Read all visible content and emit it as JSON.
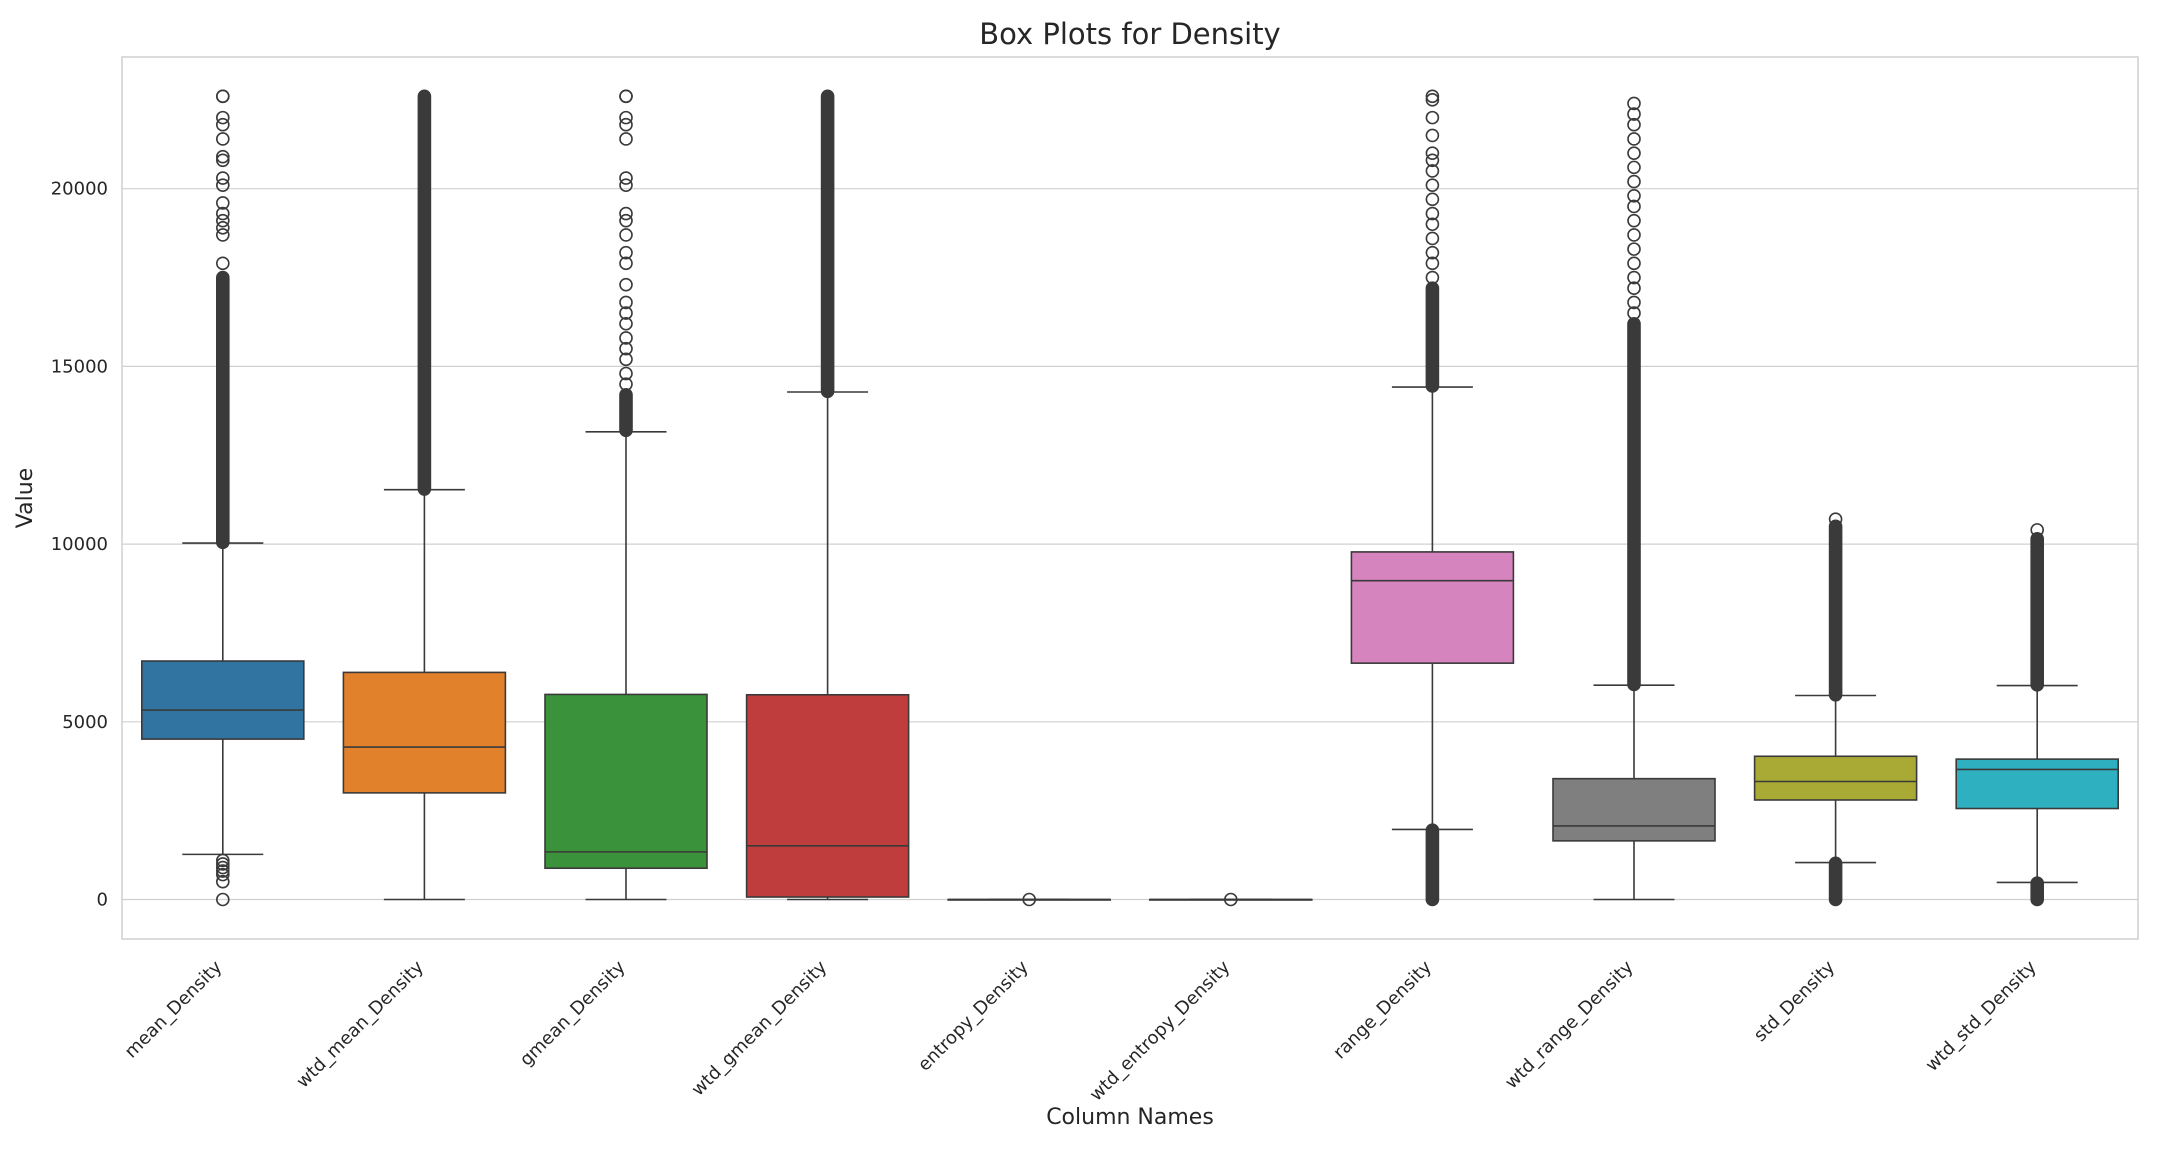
{
  "chart_data": {
    "type": "box",
    "title": "Box Plots for Density",
    "xlabel": "Column Names",
    "ylabel": "Value",
    "ylim": [
      -1100,
      23500
    ],
    "yticks": [
      0,
      5000,
      10000,
      15000,
      20000
    ],
    "grid": true,
    "series": [
      {
        "name": "mean_Density",
        "color": "#3274a1",
        "q1": 4513,
        "median": 5330,
        "q3": 6710,
        "whisker_low": 1270,
        "whisker_high": 10030,
        "outliers_high_continuous": [
          10050,
          17500
        ],
        "outliers_high": [
          17900,
          18700,
          18900,
          19100,
          19300,
          19600,
          20100,
          20300,
          20800,
          20900,
          21400,
          21800,
          22000,
          22600,
          22600
        ],
        "outliers_low": [
          1100,
          1000,
          900,
          800,
          700,
          500,
          0
        ]
      },
      {
        "name": "wtd_mean_Density",
        "color": "#e1812c",
        "q1": 3000,
        "median": 4290,
        "q3": 6390,
        "whisker_low": 0,
        "whisker_high": 11530,
        "outliers_high_continuous": [
          11550,
          22600
        ],
        "outliers_high": [],
        "outliers_low": []
      },
      {
        "name": "gmean_Density",
        "color": "#3a923a",
        "q1": 880,
        "median": 1340,
        "q3": 5770,
        "whisker_low": 0,
        "whisker_high": 13160,
        "outliers_high_continuous": [
          13200,
          14200
        ],
        "outliers_high": [
          14500,
          14800,
          15200,
          15500,
          15800,
          16200,
          16500,
          16800,
          17300,
          17900,
          18200,
          18700,
          19100,
          19300,
          20100,
          20300,
          21400,
          21800,
          22000,
          22600,
          22600
        ],
        "outliers_low": []
      },
      {
        "name": "wtd_gmean_Density",
        "color": "#c03d3e",
        "q1": 70,
        "median": 1510,
        "q3": 5760,
        "whisker_low": 0,
        "whisker_high": 14280,
        "outliers_high_continuous": [
          14300,
          22600
        ],
        "outliers_high": [],
        "outliers_low": []
      },
      {
        "name": "entropy_Density",
        "color": "#9372b2",
        "q1": 0,
        "median": 0,
        "q3": 0,
        "whisker_low": 0,
        "whisker_high": 0,
        "outliers_high_continuous": [],
        "outliers_high": [
          0
        ],
        "outliers_low": []
      },
      {
        "name": "wtd_entropy_Density",
        "color": "#845b53",
        "q1": 0,
        "median": 0,
        "q3": 0,
        "whisker_low": 0,
        "whisker_high": 0,
        "outliers_high_continuous": [],
        "outliers_high": [
          0
        ],
        "outliers_low": []
      },
      {
        "name": "range_Density",
        "color": "#d684bd",
        "q1": 6650,
        "median": 8970,
        "q3": 9780,
        "whisker_low": 1970,
        "whisker_high": 14420,
        "outliers_high_continuous": [
          14450,
          17200
        ],
        "outliers_high": [
          17500,
          17900,
          18200,
          18600,
          19000,
          19300,
          19700,
          20100,
          20500,
          20800,
          21000,
          21500,
          22000,
          22500,
          22600
        ],
        "outliers_low_continuous": [
          0,
          1950
        ],
        "outliers_low": []
      },
      {
        "name": "wtd_range_Density",
        "color": "#7f7f7f",
        "q1": 1650,
        "median": 2070,
        "q3": 3400,
        "whisker_low": 0,
        "whisker_high": 6030,
        "outliers_high_continuous": [
          6050,
          16200
        ],
        "outliers_high": [
          16500,
          16800,
          17200,
          17500,
          17900,
          18300,
          18700,
          19100,
          19500,
          19800,
          20200,
          20600,
          21000,
          21400,
          21800,
          22100,
          22400
        ],
        "outliers_low": []
      },
      {
        "name": "std_Density",
        "color": "#a9aa35",
        "q1": 2800,
        "median": 3320,
        "q3": 4030,
        "whisker_low": 1040,
        "whisker_high": 5740,
        "outliers_high_continuous": [
          5760,
          10500
        ],
        "outliers_high": [
          10700
        ],
        "outliers_low_continuous": [
          0,
          1020
        ],
        "outliers_low": []
      },
      {
        "name": "wtd_std_Density",
        "color": "#2eb0c0",
        "q1": 2560,
        "median": 3660,
        "q3": 3950,
        "whisker_low": 480,
        "whisker_high": 6020,
        "outliers_high_continuous": [
          6040,
          10150
        ],
        "outliers_high": [
          10400
        ],
        "outliers_low_continuous": [
          0,
          460
        ],
        "outliers_low": []
      }
    ]
  }
}
